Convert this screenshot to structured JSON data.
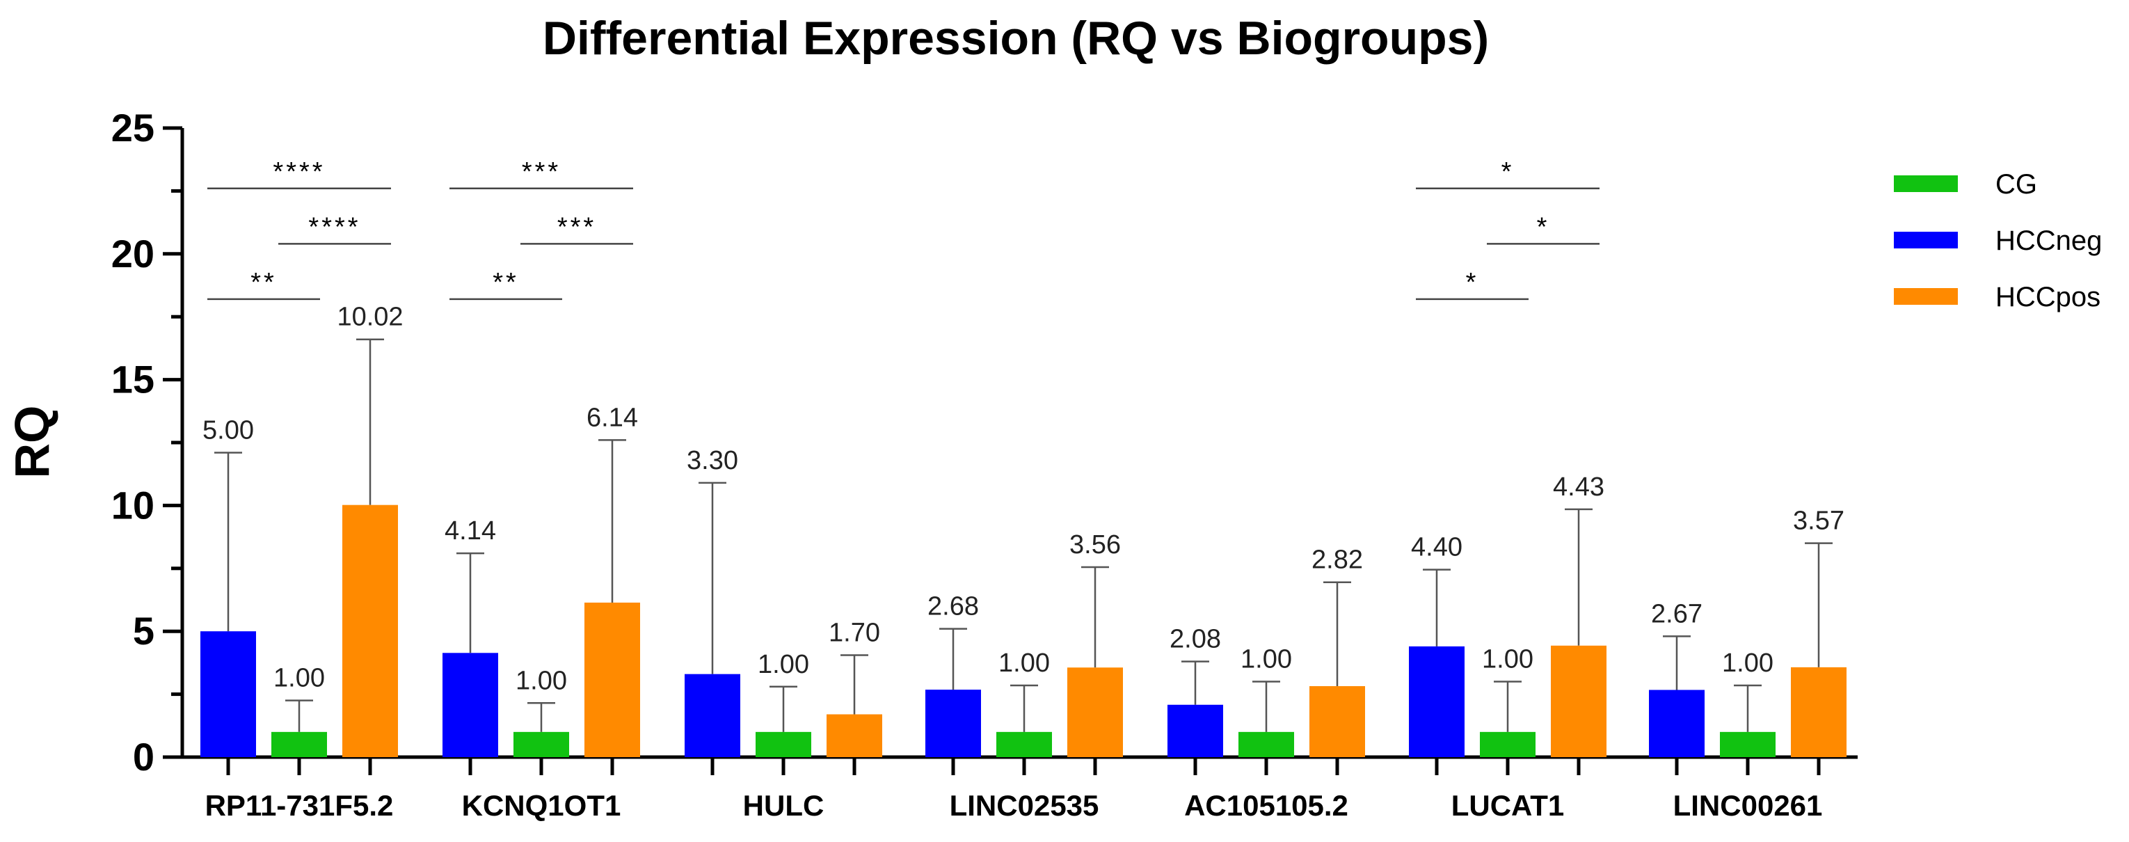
{
  "chart_data": {
    "type": "bar",
    "title": "Differential Expression (RQ vs Biogroups)",
    "xlabel": "",
    "ylabel": "RQ",
    "ylim": [
      0,
      25
    ],
    "yticks": [
      "0",
      "5",
      "10",
      "15",
      "20",
      "25"
    ],
    "yticks_values": [
      0,
      5,
      10,
      15,
      20,
      25
    ],
    "categories": [
      "RP11-731F5.2",
      "KCNQ1OT1",
      "HULC",
      "LINC02535",
      "AC105105.2",
      "LUCAT1",
      "LINC00261"
    ],
    "bar_order": [
      "HCCneg",
      "CG",
      "HCCpos"
    ],
    "legend_position": "right",
    "series": [
      {
        "name": "CG",
        "color": "#11c211",
        "values": [
          1.0,
          1.0,
          1.0,
          1.0,
          1.0,
          1.0,
          1.0
        ],
        "labels": [
          "1.00",
          "1.00",
          "1.00",
          "1.00",
          "1.00",
          "1.00",
          "1.00"
        ],
        "error_upper": [
          2.25,
          2.15,
          2.8,
          2.85,
          3.0,
          3.0,
          2.85
        ]
      },
      {
        "name": "HCCneg",
        "color": "#0000ff",
        "values": [
          5.0,
          4.14,
          3.3,
          2.68,
          2.08,
          4.4,
          2.67
        ],
        "labels": [
          "5.00",
          "4.14",
          "3.30",
          "2.68",
          "2.08",
          "4.40",
          "2.67"
        ],
        "error_upper": [
          12.1,
          8.1,
          10.9,
          5.1,
          3.8,
          7.45,
          4.8
        ]
      },
      {
        "name": "HCCpos",
        "color": "#ff8a00",
        "values": [
          10.02,
          6.14,
          1.7,
          3.56,
          2.82,
          4.43,
          3.57
        ],
        "labels": [
          "10.02",
          "6.14",
          "1.70",
          "3.56",
          "2.82",
          "4.43",
          "3.57"
        ],
        "error_upper": [
          16.6,
          12.6,
          4.05,
          7.55,
          6.95,
          9.85,
          8.5
        ]
      }
    ],
    "significance": [
      {
        "category": 0,
        "from": "HCCneg",
        "to": "HCCpos",
        "y": 22.6,
        "label": "****"
      },
      {
        "category": 0,
        "from": "CG",
        "to": "HCCpos",
        "y": 20.4,
        "label": "****"
      },
      {
        "category": 0,
        "from": "HCCneg",
        "to": "CG",
        "y": 18.2,
        "label": "**"
      },
      {
        "category": 1,
        "from": "HCCneg",
        "to": "HCCpos",
        "y": 22.6,
        "label": "***"
      },
      {
        "category": 1,
        "from": "CG",
        "to": "HCCpos",
        "y": 20.4,
        "label": "***"
      },
      {
        "category": 1,
        "from": "HCCneg",
        "to": "CG",
        "y": 18.2,
        "label": "**"
      },
      {
        "category": 5,
        "from": "HCCneg",
        "to": "HCCpos",
        "y": 22.6,
        "label": "*"
      },
      {
        "category": 5,
        "from": "CG",
        "to": "HCCpos",
        "y": 20.4,
        "label": "*"
      },
      {
        "category": 5,
        "from": "HCCneg",
        "to": "CG",
        "y": 18.2,
        "label": "*"
      }
    ]
  }
}
